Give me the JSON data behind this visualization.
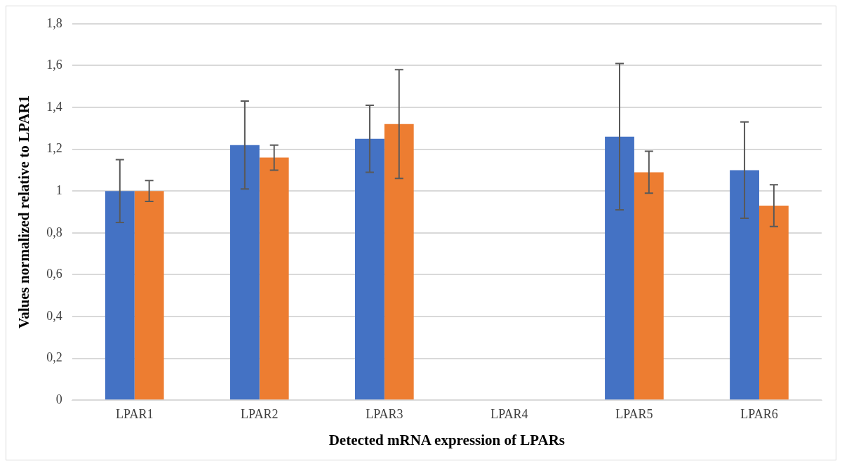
{
  "chart_data": {
    "type": "bar",
    "xlabel": "Detected mRNA expression of LPARs",
    "ylabel": "Values normalized relative to LPAR1",
    "categories": [
      "LPAR1",
      "LPAR2",
      "LPAR3",
      "LPAR4",
      "LPAR5",
      "LPAR6"
    ],
    "series": [
      {
        "color": "#4472c4",
        "values": [
          1.0,
          1.22,
          1.25,
          null,
          1.26,
          1.1
        ],
        "errors": [
          0.15,
          0.21,
          0.16,
          null,
          0.35,
          0.23
        ]
      },
      {
        "color": "#ed7d31",
        "values": [
          1.0,
          1.16,
          1.32,
          null,
          1.09,
          0.93
        ],
        "errors": [
          0.05,
          0.06,
          0.26,
          null,
          0.1,
          0.1
        ]
      }
    ],
    "ylim": [
      0,
      1.8
    ],
    "yticks": [
      0,
      {
        "value": 0.2,
        "label": "0,2"
      },
      {
        "value": 0.4,
        "label": "0,4"
      },
      {
        "value": 0.6,
        "label": "0,6"
      },
      {
        "value": 0.8,
        "label": "0,8"
      },
      1,
      {
        "value": 1.2,
        "label": "1,2"
      },
      {
        "value": 1.4,
        "label": "1,4"
      },
      {
        "value": 1.6,
        "label": "1,6"
      },
      {
        "value": 1.8,
        "label": "1,8"
      }
    ],
    "grid": "y",
    "legend": false
  }
}
